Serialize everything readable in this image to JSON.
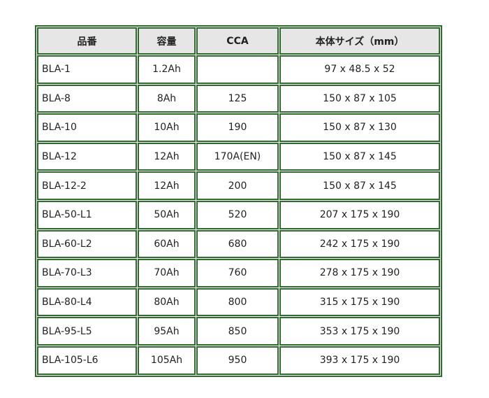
{
  "table": {
    "headers": [
      "品番",
      "容量",
      "CCA",
      "本体サイズ（mm）"
    ],
    "rows": [
      [
        "BLA-1",
        "1.2Ah",
        null,
        "97 x 48.5 x 52"
      ],
      [
        "BLA-8",
        "8Ah",
        "125",
        "150 x 87 x 105"
      ],
      [
        "BLA-10",
        "10Ah",
        "190",
        "150 x 87 x 130"
      ],
      [
        "BLA-12",
        "12Ah",
        "170A(EN)",
        "150 x 87 x 145"
      ],
      [
        "BLA-12-2",
        "12Ah",
        "200",
        "150 x 87 x 145"
      ],
      [
        "BLA-50-L1",
        "50Ah",
        "520",
        "207 x 175 x 190"
      ],
      [
        "BLA-60-L2",
        "60Ah",
        "680",
        "242 x 175 x 190"
      ],
      [
        "BLA-70-L3",
        "70Ah",
        "760",
        "278 x 175 x 190"
      ],
      [
        "BLA-80-L4",
        "80Ah",
        "800",
        "315 x 175 x 190"
      ],
      [
        "BLA-95-L5",
        "95Ah",
        "850",
        "353 x 175 x 190"
      ],
      [
        "BLA-105-L6",
        "105Ah",
        "950",
        "393 x 175 x 190"
      ]
    ]
  }
}
